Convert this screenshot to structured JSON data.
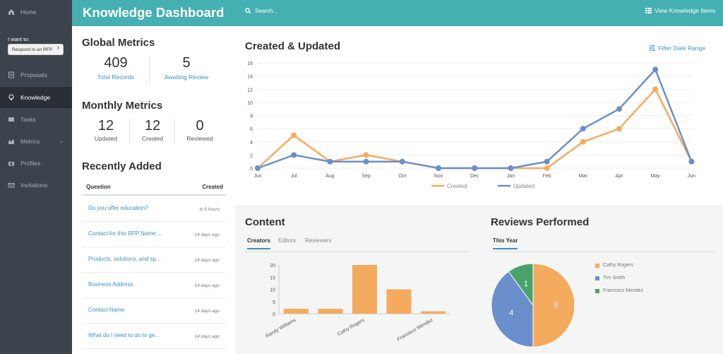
{
  "sidebar": {
    "items": [
      {
        "label": "Home",
        "icon": "home-icon"
      },
      {
        "label": "Proposals",
        "icon": "document-icon"
      },
      {
        "label": "Knowledge",
        "icon": "lightbulb-icon"
      },
      {
        "label": "Tasks",
        "icon": "tasks-icon"
      },
      {
        "label": "Metrics",
        "icon": "chart-icon"
      },
      {
        "label": "Profiles",
        "icon": "camera-icon"
      },
      {
        "label": "Invitations",
        "icon": "envelope-icon"
      }
    ],
    "want_label": "I want to:",
    "role_value": "Respond to an RFP"
  },
  "header": {
    "title": "Knowledge Dashboard",
    "search_placeholder": "Search...",
    "view_items": "View Knowledge Items"
  },
  "global_metrics": {
    "title": "Global Metrics",
    "total_records": "409",
    "total_records_label": "Total Records",
    "awaiting": "5",
    "awaiting_label": "Awaiting Review"
  },
  "monthly_metrics": {
    "title": "Monthly Metrics",
    "updated": "12",
    "updated_label": "Updated",
    "created": "12",
    "created_label": "Created",
    "reviewed": "0",
    "reviewed_label": "Reviewed"
  },
  "recently_added": {
    "title": "Recently Added",
    "col_question": "Question",
    "col_created": "Created",
    "rows": [
      {
        "q": "Do you offer education?",
        "t": "in 5 hours"
      },
      {
        "q": "Contact for this RFP Name:...",
        "t": "14 days ago"
      },
      {
        "q": "Products, solutions, and sp...",
        "t": "14 days ago"
      },
      {
        "q": "Business Address",
        "t": "14 days ago"
      },
      {
        "q": "Contact Name",
        "t": "14 days ago"
      },
      {
        "q": "What do I need to do to ge...",
        "t": "14 days ago"
      }
    ]
  },
  "created_updated": {
    "title": "Created & Updated",
    "filter": "Filter Date Range"
  },
  "content": {
    "title": "Content",
    "tabs": [
      "Creators",
      "Editors",
      "Reviewers"
    ]
  },
  "reviews": {
    "title": "Reviews Performed",
    "tab": "This Year"
  },
  "colors": {
    "teal": "#45b0b1",
    "orange": "#f5ab5e",
    "blue": "#6a8fcc",
    "green": "#4aa36b"
  },
  "chart_data": [
    {
      "type": "line",
      "title": "Created & Updated",
      "categories": [
        "Jun",
        "Jul",
        "Aug",
        "Sep",
        "Oct",
        "Nov",
        "Dec",
        "Jan",
        "Feb",
        "Mar",
        "Apr",
        "May",
        "Jun"
      ],
      "ylim": [
        0,
        16
      ],
      "yticks": [
        "0",
        "2",
        "4",
        "6",
        "8",
        "10",
        "12",
        "14",
        "16"
      ],
      "series": [
        {
          "name": "Created",
          "color": "#f5ab5e",
          "values": [
            0,
            5,
            1,
            2,
            1,
            0,
            0,
            0,
            0,
            4,
            6,
            12,
            1
          ]
        },
        {
          "name": "Updated",
          "color": "#6a8fcc",
          "values": [
            0,
            2,
            1,
            1,
            1,
            0,
            0,
            0,
            1,
            6,
            9,
            15,
            1
          ]
        }
      ]
    },
    {
      "type": "bar",
      "categories": [
        "Randy Williams",
        "",
        "Cathy Rogers",
        "",
        "Francisco Mendez"
      ],
      "values": [
        2,
        2,
        20,
        10,
        1
      ],
      "ylim": [
        0,
        20
      ],
      "yticks": [
        "0",
        "5",
        "10",
        "15",
        "20"
      ],
      "color": "#f5ab5e"
    },
    {
      "type": "pie",
      "labels": [
        "Cathy Rogers",
        "Tim Smith",
        "Francisco Mendez"
      ],
      "values": [
        5,
        4,
        1
      ],
      "colors": [
        "#f5ab5e",
        "#6a8fcc",
        "#4aa36b"
      ]
    }
  ]
}
